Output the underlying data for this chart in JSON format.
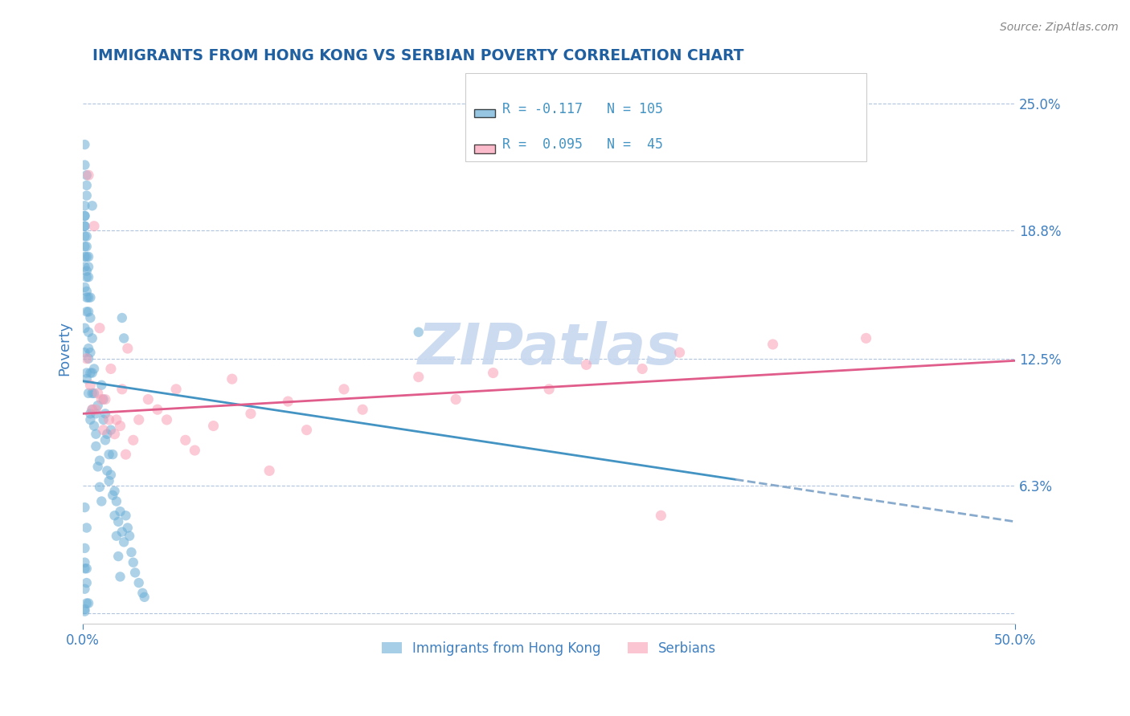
{
  "title": "IMMIGRANTS FROM HONG KONG VS SERBIAN POVERTY CORRELATION CHART",
  "source_text": "Source: ZipAtlas.com",
  "xlabel": "",
  "ylabel": "Poverty",
  "xlim": [
    0.0,
    0.5
  ],
  "ylim": [
    -0.005,
    0.265
  ],
  "yticks": [
    0.0,
    0.0625,
    0.125,
    0.188,
    0.25
  ],
  "ytick_labels": [
    "",
    "6.3%",
    "12.5%",
    "18.8%",
    "25.0%"
  ],
  "xtick_labels": [
    "0.0%",
    "50.0%"
  ],
  "xticks": [
    0.0,
    0.5
  ],
  "blue_R": -0.117,
  "blue_N": 105,
  "pink_R": 0.095,
  "pink_N": 45,
  "blue_color": "#6baed6",
  "pink_color": "#fa9fb5",
  "blue_line_color": "#4393c3",
  "pink_line_color": "#e05c8a",
  "title_color": "#2060a0",
  "axis_label_color": "#4080c0",
  "watermark_color": "#c8d8f0",
  "background_color": "#ffffff",
  "blue_scatter_x": [
    0.002,
    0.003,
    0.004,
    0.005,
    0.006,
    0.007,
    0.008,
    0.009,
    0.01,
    0.011,
    0.012,
    0.013,
    0.014,
    0.015,
    0.016,
    0.017,
    0.018,
    0.019,
    0.02,
    0.021,
    0.022,
    0.023,
    0.024,
    0.025,
    0.026,
    0.027,
    0.028,
    0.03,
    0.032,
    0.033,
    0.001,
    0.002,
    0.003,
    0.004,
    0.005,
    0.006,
    0.007,
    0.008,
    0.009,
    0.01,
    0.011,
    0.012,
    0.013,
    0.014,
    0.015,
    0.016,
    0.017,
    0.018,
    0.019,
    0.02,
    0.021,
    0.022,
    0.001,
    0.002,
    0.003,
    0.004,
    0.005,
    0.006,
    0.007,
    0.001,
    0.002,
    0.003,
    0.001,
    0.002,
    0.003,
    0.004,
    0.005,
    0.001,
    0.002,
    0.001,
    0.002,
    0.003,
    0.004,
    0.001,
    0.002,
    0.003,
    0.001,
    0.002,
    0.003,
    0.001,
    0.002,
    0.001,
    0.002,
    0.001,
    0.002,
    0.001,
    0.18,
    0.001,
    0.002,
    0.003,
    0.004,
    0.005,
    0.001,
    0.002,
    0.001,
    0.002,
    0.001,
    0.002,
    0.001,
    0.001,
    0.001,
    0.002,
    0.003,
    0.001,
    0.001
  ],
  "blue_scatter_y": [
    0.115,
    0.13,
    0.095,
    0.108,
    0.12,
    0.088,
    0.102,
    0.075,
    0.112,
    0.095,
    0.085,
    0.07,
    0.065,
    0.09,
    0.078,
    0.06,
    0.055,
    0.045,
    0.05,
    0.04,
    0.035,
    0.048,
    0.042,
    0.038,
    0.03,
    0.025,
    0.02,
    0.015,
    0.01,
    0.008,
    0.14,
    0.155,
    0.125,
    0.118,
    0.1,
    0.092,
    0.082,
    0.072,
    0.062,
    0.055,
    0.105,
    0.098,
    0.088,
    0.078,
    0.068,
    0.058,
    0.048,
    0.038,
    0.028,
    0.018,
    0.145,
    0.135,
    0.16,
    0.148,
    0.138,
    0.128,
    0.118,
    0.108,
    0.098,
    0.17,
    0.158,
    0.148,
    0.175,
    0.165,
    0.155,
    0.145,
    0.135,
    0.18,
    0.168,
    0.185,
    0.175,
    0.165,
    0.155,
    0.19,
    0.18,
    0.17,
    0.195,
    0.185,
    0.175,
    0.052,
    0.042,
    0.032,
    0.022,
    0.012,
    0.005,
    0.022,
    0.138,
    0.128,
    0.118,
    0.108,
    0.098,
    0.2,
    0.19,
    0.205,
    0.195,
    0.21,
    0.2,
    0.215,
    0.22,
    0.001,
    0.025,
    0.015,
    0.005,
    0.23,
    0.002
  ],
  "pink_scatter_x": [
    0.003,
    0.006,
    0.009,
    0.012,
    0.015,
    0.018,
    0.021,
    0.024,
    0.027,
    0.03,
    0.04,
    0.05,
    0.06,
    0.08,
    0.1,
    0.12,
    0.15,
    0.2,
    0.25,
    0.3,
    0.002,
    0.005,
    0.008,
    0.011,
    0.014,
    0.017,
    0.02,
    0.023,
    0.035,
    0.045,
    0.055,
    0.07,
    0.09,
    0.11,
    0.14,
    0.18,
    0.22,
    0.27,
    0.32,
    0.37,
    0.42,
    0.004,
    0.007,
    0.01,
    0.31
  ],
  "pink_scatter_y": [
    0.215,
    0.19,
    0.14,
    0.105,
    0.12,
    0.095,
    0.11,
    0.13,
    0.085,
    0.095,
    0.1,
    0.11,
    0.08,
    0.115,
    0.07,
    0.09,
    0.1,
    0.105,
    0.11,
    0.12,
    0.125,
    0.1,
    0.108,
    0.09,
    0.095,
    0.088,
    0.092,
    0.078,
    0.105,
    0.095,
    0.085,
    0.092,
    0.098,
    0.104,
    0.11,
    0.116,
    0.118,
    0.122,
    0.128,
    0.132,
    0.135,
    0.112,
    0.1,
    0.105,
    0.048
  ],
  "legend_blue_label": "Immigrants from Hong Kong",
  "legend_pink_label": "Serbians",
  "grid_color": "#b0c4de",
  "dashed_line_color": "#88aacc"
}
